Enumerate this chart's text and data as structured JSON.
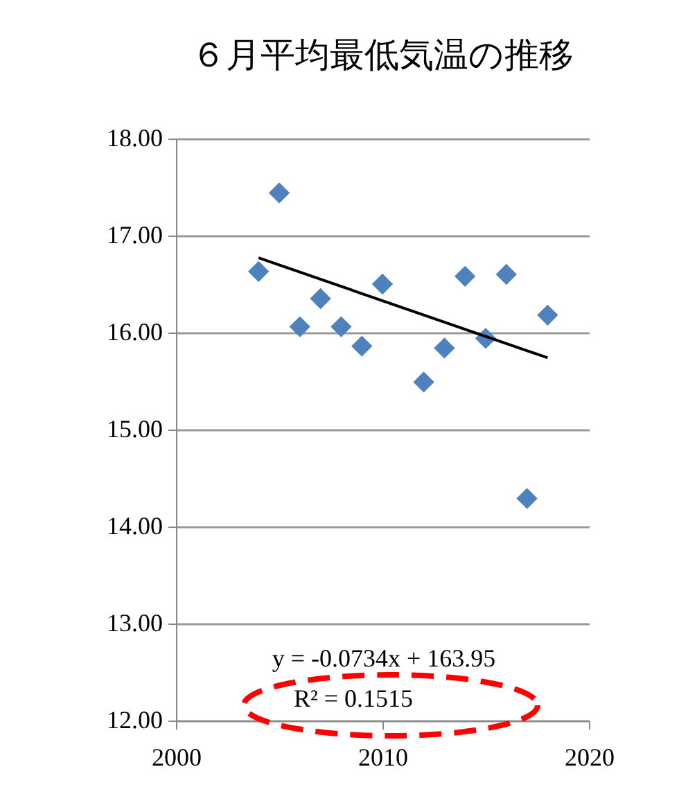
{
  "chart_data": {
    "type": "scatter",
    "title": "６月平均最低気温の推移",
    "x": [
      2004,
      2005,
      2006,
      2007,
      2008,
      2009,
      2010,
      2012,
      2013,
      2014,
      2015,
      2016,
      2017,
      2018
    ],
    "series": [
      {
        "color": "#4f81bd",
        "marker": "diamond",
        "values": [
          16.63,
          17.44,
          16.06,
          16.35,
          16.06,
          15.86,
          16.5,
          15.49,
          15.84,
          16.58,
          15.94,
          16.6,
          14.29,
          16.18
        ]
      },
      {
        "type": "line",
        "color": "#000000",
        "x": [
          2004,
          2018
        ],
        "values": [
          16.77,
          15.74
        ]
      }
    ],
    "xlim": [
      2000,
      2020
    ],
    "xticks": [
      2000,
      2010,
      2020
    ],
    "ylim": [
      12,
      18
    ],
    "yticks": [
      {
        "value": 12,
        "label": "12.00"
      },
      {
        "value": 13,
        "label": "13.00"
      },
      {
        "value": 14,
        "label": "14.00"
      },
      {
        "value": 15,
        "label": "15.00"
      },
      {
        "value": 16,
        "label": "16.00"
      },
      {
        "value": 17,
        "label": "17.00"
      },
      {
        "value": 18,
        "label": "18.00"
      }
    ],
    "grid": "y",
    "annotations": [
      "y = -0.0734x + 163.95",
      "R² = 0.1515"
    ]
  }
}
